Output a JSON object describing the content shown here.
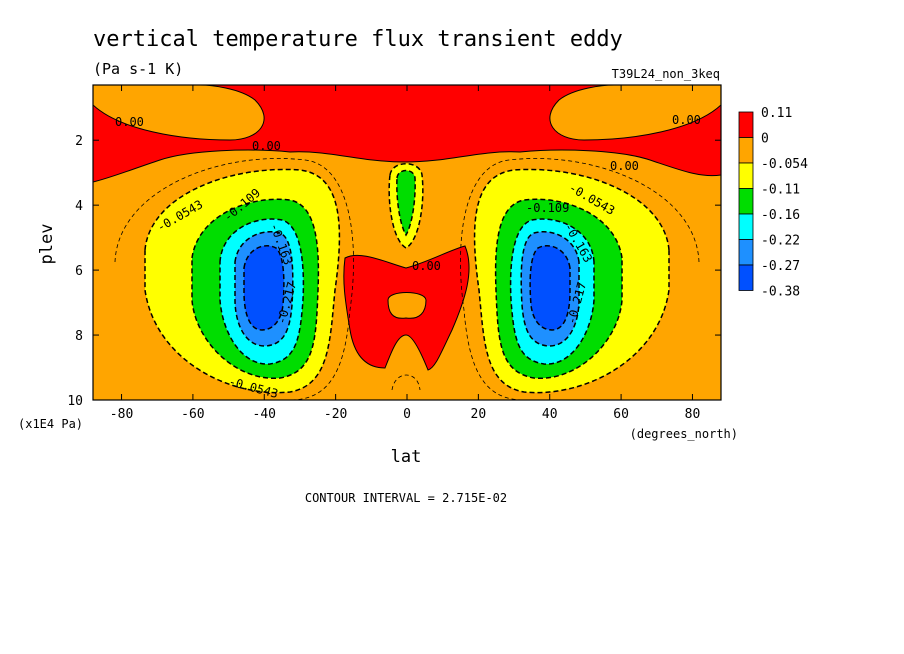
{
  "chart_data": {
    "type": "heatmap",
    "title": "vertical temperature flux transient eddy",
    "units": "(Pa s-1 K)",
    "run_label": "T39L24_non_3keq",
    "xlabel": "lat",
    "x_units": "(degrees_north)",
    "ylabel": "plev",
    "y_units": "(x1E4 Pa)",
    "xlim": [
      -88,
      88
    ],
    "ylim": [
      10,
      0.3
    ],
    "x_ticks": [
      "-80",
      "-60",
      "-40",
      "-20",
      "0",
      "20",
      "40",
      "60",
      "80"
    ],
    "y_ticks": [
      "2",
      "4",
      "6",
      "8",
      "10"
    ],
    "colorbar": {
      "labels": [
        "0.11",
        "0",
        "-0.054",
        "-0.11",
        "-0.16",
        "-0.22",
        "-0.27",
        "-0.38"
      ],
      "colors": [
        "#ff0000",
        "#ffa500",
        "#ffff00",
        "#00dd00",
        "#00ffff",
        "#1e90ff",
        "#0050ff"
      ]
    },
    "contour_labels": [
      "0.00",
      "0.00",
      "0.00",
      "0.00",
      "0.00",
      "-0.0543",
      "-0.109",
      "-0.163",
      "-0.217",
      "-0.0543",
      "-0.109",
      "-0.163",
      "-0.217",
      "-0.0543"
    ],
    "contour_interval": "CONTOUR INTERVAL = 2.715E-02",
    "features": {
      "minimum_south": {
        "lat": -40,
        "plev": 6.2,
        "value": -0.36
      },
      "minimum_north": {
        "lat": 40,
        "plev": 6.0,
        "value": -0.36
      },
      "positive_top_layer": {
        "plev_range": [
          0.3,
          3.0
        ],
        "value": 0.11
      },
      "equatorial_positive_blob": {
        "lat_range": [
          -18,
          18
        ],
        "plev_range": [
          5.2,
          8.8
        ]
      },
      "equatorial_negative_column": {
        "lat": 0,
        "plev_range": [
          2.5,
          5.0
        ]
      }
    }
  }
}
